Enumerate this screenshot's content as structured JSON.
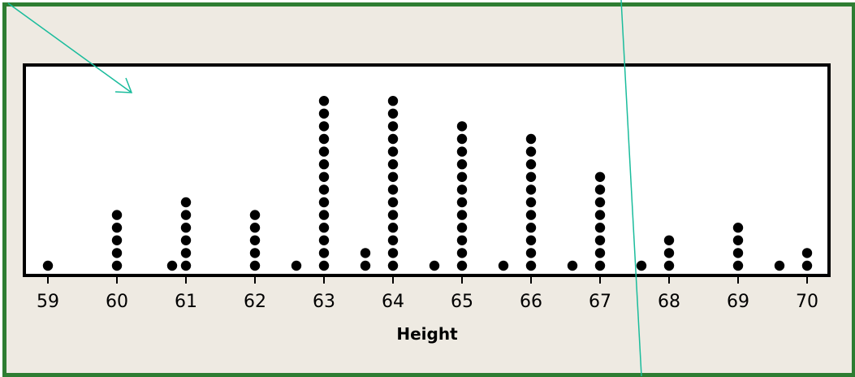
{
  "chart_data": {
    "type": "dotplot",
    "title": "",
    "xlabel": "Height",
    "ylabel": "",
    "x_ticks": [
      59,
      60,
      61,
      62,
      63,
      64,
      65,
      66,
      67,
      68,
      69,
      70
    ],
    "xlim": [
      59,
      70
    ],
    "dot_columns": [
      {
        "x": 59,
        "count": 1
      },
      {
        "x": 60,
        "count": 5
      },
      {
        "x": 60.8,
        "count": 1
      },
      {
        "x": 61,
        "count": 6
      },
      {
        "x": 62,
        "count": 5
      },
      {
        "x": 62.6,
        "count": 1
      },
      {
        "x": 63,
        "count": 14
      },
      {
        "x": 63.6,
        "count": 2
      },
      {
        "x": 64,
        "count": 14
      },
      {
        "x": 64.6,
        "count": 1
      },
      {
        "x": 65,
        "count": 12
      },
      {
        "x": 65.6,
        "count": 1
      },
      {
        "x": 66,
        "count": 11
      },
      {
        "x": 66.6,
        "count": 1
      },
      {
        "x": 67,
        "count": 8
      },
      {
        "x": 67.6,
        "count": 1
      },
      {
        "x": 68,
        "count": 3
      },
      {
        "x": 69,
        "count": 4
      },
      {
        "x": 69.6,
        "count": 1
      },
      {
        "x": 70,
        "count": 2
      }
    ],
    "grid": false,
    "colors": {
      "frame": "#2e7d32",
      "background": "#eeeae2",
      "plot": "#ffffff",
      "dots": "#000000",
      "annotation": "#1abc9c"
    }
  }
}
